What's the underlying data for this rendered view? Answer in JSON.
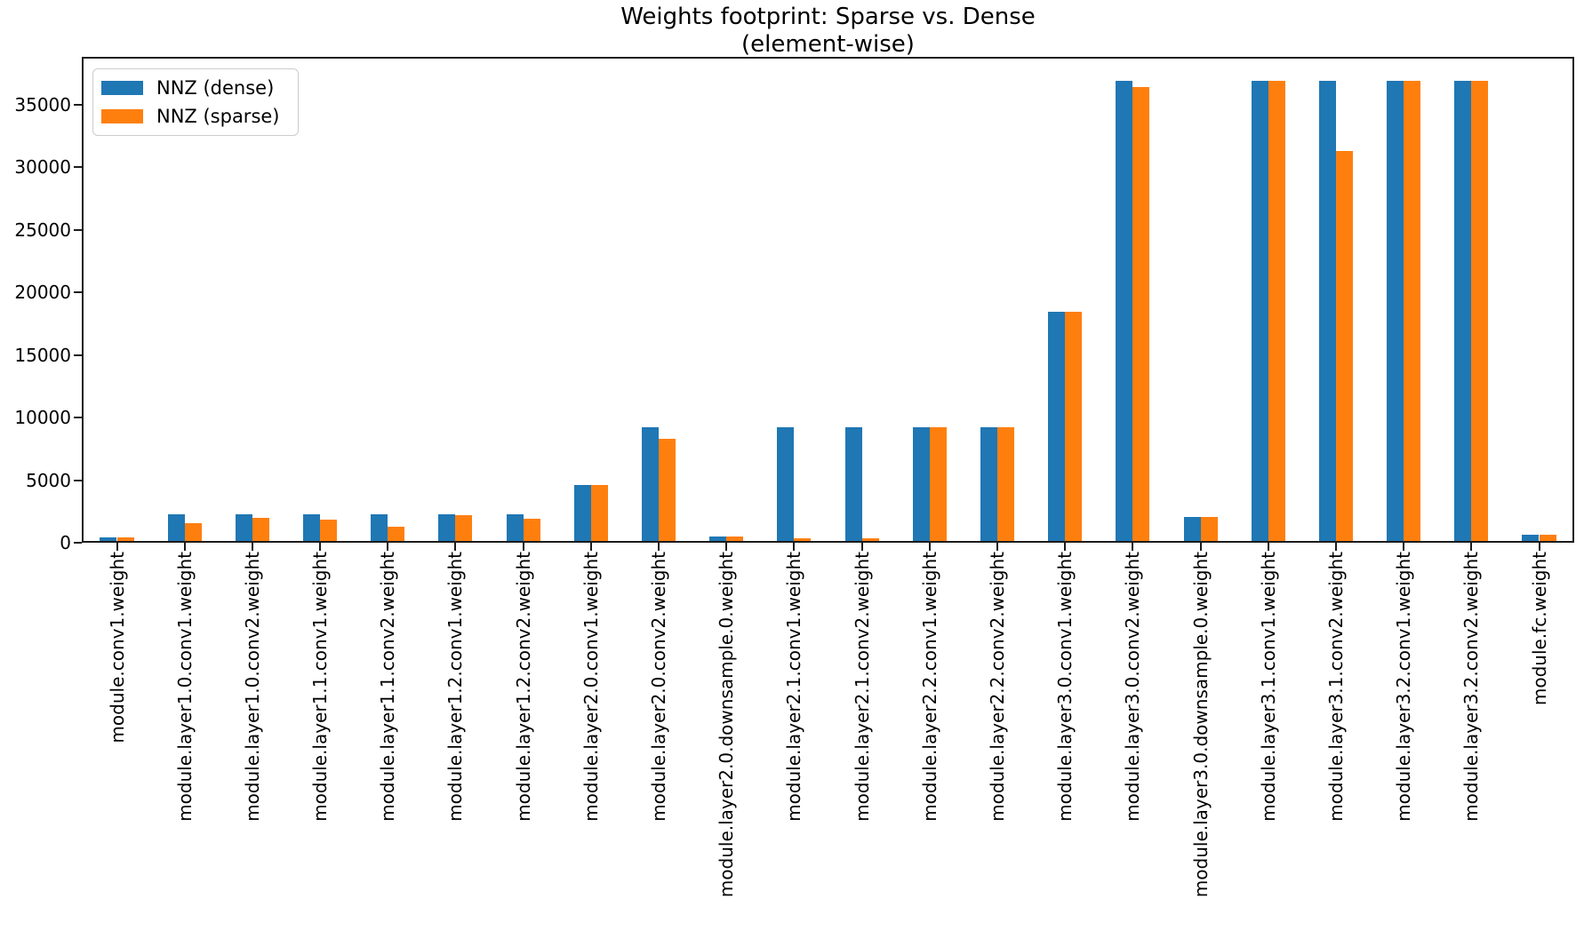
{
  "title": {
    "line1": "Weights footprint: Sparse vs. Dense",
    "line2": "(element-wise)"
  },
  "legend": {
    "entries": [
      {
        "label": "NNZ (dense)",
        "color": "#1f77b4"
      },
      {
        "label": "NNZ (sparse)",
        "color": "#ff7f0e"
      }
    ]
  },
  "colors": {
    "dense": "#1f77b4",
    "sparse": "#ff7f0e",
    "axis": "#1c1c1c",
    "background": "#ffffff"
  },
  "chart_data": {
    "type": "bar",
    "title": "Weights footprint: Sparse vs. Dense\n(element-wise)",
    "xlabel": "",
    "ylabel": "",
    "grid": false,
    "legend_position": "upper left",
    "ylim": [
      0,
      38800
    ],
    "yticks": [
      0,
      5000,
      10000,
      15000,
      20000,
      25000,
      30000,
      35000
    ],
    "xtick_rotation": 90,
    "categories": [
      "module.conv1.weight",
      "module.layer1.0.conv1.weight",
      "module.layer1.0.conv2.weight",
      "module.layer1.1.conv1.weight",
      "module.layer1.1.conv2.weight",
      "module.layer1.2.conv1.weight",
      "module.layer1.2.conv2.weight",
      "module.layer2.0.conv1.weight",
      "module.layer2.0.conv2.weight",
      "module.layer2.0.downsample.0.weight",
      "module.layer2.1.conv1.weight",
      "module.layer2.1.conv2.weight",
      "module.layer2.2.conv1.weight",
      "module.layer2.2.conv2.weight",
      "module.layer3.0.conv1.weight",
      "module.layer3.0.conv2.weight",
      "module.layer3.0.downsample.0.weight",
      "module.layer3.1.conv1.weight",
      "module.layer3.1.conv2.weight",
      "module.layer3.2.conv1.weight",
      "module.layer3.2.conv2.weight",
      "module.fc.weight"
    ],
    "series": [
      {
        "name": "NNZ (dense)",
        "color": "#1f77b4",
        "values": [
          432,
          2304,
          2304,
          2304,
          2304,
          2304,
          2304,
          4608,
          9216,
          512,
          9216,
          9216,
          9216,
          9216,
          18432,
          36864,
          2048,
          36864,
          36864,
          36864,
          36864,
          640
        ]
      },
      {
        "name": "NNZ (sparse)",
        "color": "#ff7f0e",
        "values": [
          432,
          1550,
          2000,
          1860,
          1310,
          2200,
          1920,
          4608,
          8300,
          512,
          350,
          330,
          9216,
          9216,
          18432,
          36400,
          2048,
          36864,
          31300,
          36864,
          36864,
          640
        ]
      }
    ]
  }
}
